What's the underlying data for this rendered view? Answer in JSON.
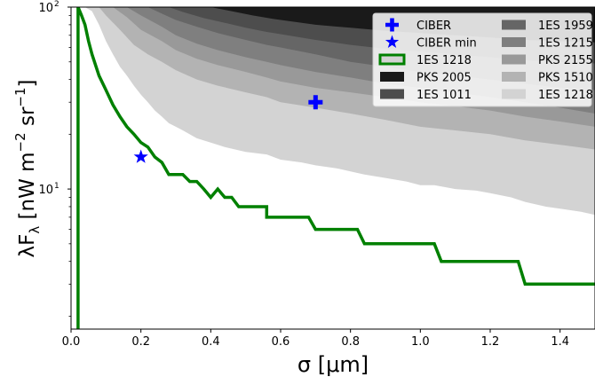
{
  "chart_data": {
    "type": "area",
    "title": "",
    "xlabel": "σ  [μm]",
    "ylabel_main": "λF",
    "ylabel_sub": "λ",
    "ylabel_units": "  [nW m",
    "ylabel_exp1": "−2",
    "ylabel_mid": " sr",
    "ylabel_exp2": "−1",
    "ylabel_end": "]",
    "xlim": [
      0.0,
      1.5
    ],
    "ylim_log10": [
      0.23,
      2.0
    ],
    "yscale": "log",
    "grid": false,
    "legend_position": "top-right",
    "xticks": [
      {
        "value": 0.0,
        "label": "0.0"
      },
      {
        "value": 0.2,
        "label": "0.2"
      },
      {
        "value": 0.4,
        "label": "0.4"
      },
      {
        "value": 0.6,
        "label": "0.6"
      },
      {
        "value": 0.8,
        "label": "0.8"
      },
      {
        "value": 1.0,
        "label": "1.0"
      },
      {
        "value": 1.2,
        "label": "1.2"
      },
      {
        "value": 1.4,
        "label": "1.4"
      }
    ],
    "yticks": [
      {
        "value": 10,
        "label": "10",
        "exp": "1"
      },
      {
        "value": 100,
        "label": "10",
        "exp": "2"
      }
    ],
    "points": [
      {
        "name": "CIBER",
        "x": 0.7,
        "y": 30,
        "marker": "plus",
        "color": "#0000ff"
      },
      {
        "name": "CIBER min",
        "x": 0.2,
        "y": 15,
        "marker": "star",
        "color": "#0000ff"
      }
    ],
    "bands": [
      {
        "name": "1ES 1218",
        "color": "#d3d3d3",
        "x": [
          0.02,
          0.04,
          0.06,
          0.08,
          0.1,
          0.12,
          0.14,
          0.16,
          0.18,
          0.2,
          0.22,
          0.24,
          0.26,
          0.28,
          0.3,
          0.32,
          0.36,
          0.4,
          0.44,
          0.5,
          0.56,
          0.6,
          0.66,
          0.7,
          0.76,
          0.8,
          0.84,
          0.9,
          0.96,
          1.0,
          1.04,
          1.1,
          1.16,
          1.2,
          1.26,
          1.3,
          1.36,
          1.4,
          1.46,
          1.5
        ],
        "y": [
          100,
          100,
          95,
          80,
          65,
          55,
          47,
          42,
          37,
          33,
          30,
          27,
          25,
          23,
          22,
          21,
          19,
          18,
          17,
          16,
          15.5,
          14.5,
          14,
          13.5,
          13,
          12.5,
          12,
          11.5,
          11,
          10.5,
          10.5,
          10,
          9.8,
          9.5,
          9,
          8.5,
          8,
          7.8,
          7.5,
          7.2
        ]
      },
      {
        "name": "PKS 1510",
        "color": "#b3b3b3",
        "x": [
          0.02,
          0.08,
          0.1,
          0.14,
          0.18,
          0.22,
          0.26,
          0.3,
          0.36,
          0.42,
          0.5,
          0.56,
          0.6,
          0.7,
          0.8,
          0.9,
          1.0,
          1.1,
          1.2,
          1.3,
          1.4,
          1.5
        ],
        "y": [
          100,
          100,
          90,
          75,
          62,
          55,
          50,
          45,
          40,
          37,
          34,
          32,
          30,
          28,
          26,
          24,
          22,
          21,
          20,
          18.5,
          17.5,
          16.5
        ]
      },
      {
        "name": "PKS 2155",
        "color": "#999999",
        "x": [
          0.02,
          0.12,
          0.16,
          0.2,
          0.26,
          0.3,
          0.36,
          0.42,
          0.5,
          0.56,
          0.6,
          0.7,
          0.8,
          0.9,
          1.0,
          1.1,
          1.2,
          1.3,
          1.4,
          1.5
        ],
        "y": [
          100,
          100,
          88,
          75,
          65,
          58,
          52,
          48,
          44,
          41,
          39,
          36,
          34,
          32,
          30,
          28.5,
          27,
          25,
          23.5,
          22
        ]
      },
      {
        "name": "1ES 1215",
        "color": "#7f7f7f",
        "x": [
          0.02,
          0.16,
          0.2,
          0.26,
          0.3,
          0.36,
          0.42,
          0.5,
          0.56,
          0.6,
          0.7,
          0.8,
          0.9,
          1.0,
          1.1,
          1.2,
          1.3,
          1.4,
          1.5
        ],
        "y": [
          100,
          100,
          90,
          78,
          70,
          63,
          58,
          53,
          50,
          48,
          44,
          41,
          38,
          36,
          34,
          32,
          30,
          28,
          26
        ]
      },
      {
        "name": "1ES 1959",
        "color": "#666666",
        "x": [
          0.02,
          0.22,
          0.26,
          0.3,
          0.36,
          0.42,
          0.5,
          0.56,
          0.6,
          0.7,
          0.8,
          0.9,
          1.0,
          1.1,
          1.2,
          1.3,
          1.4,
          1.5
        ],
        "y": [
          100,
          100,
          92,
          85,
          78,
          72,
          66,
          62,
          60,
          55,
          50,
          47,
          44,
          42,
          40,
          38,
          36,
          35
        ]
      },
      {
        "name": "1ES 1011",
        "color": "#4d4d4d",
        "x": [
          0.02,
          0.28,
          0.32,
          0.38,
          0.44,
          0.5,
          0.56,
          0.6,
          0.7,
          0.8,
          0.9,
          1.0,
          1.1,
          1.2,
          1.3,
          1.4,
          1.5
        ],
        "y": [
          100,
          100,
          94,
          87,
          82,
          77,
          73,
          71,
          66,
          62,
          59,
          57,
          55,
          53,
          51,
          50,
          49
        ]
      },
      {
        "name": "PKS 2005",
        "color": "#1a1a1a",
        "x": [
          0.02,
          0.4,
          0.46,
          0.52,
          0.58,
          0.64,
          0.7,
          0.8,
          0.9,
          1.0,
          1.1,
          1.2,
          1.3,
          1.4,
          1.5
        ],
        "y": [
          100,
          100,
          95,
          90,
          86,
          83,
          80,
          77,
          74,
          72,
          70,
          68,
          66,
          65,
          64
        ]
      }
    ],
    "line": {
      "name": "1ES 1218",
      "color": "#008000",
      "x": [
        0.02,
        0.02,
        0.03,
        0.04,
        0.05,
        0.06,
        0.08,
        0.1,
        0.12,
        0.14,
        0.16,
        0.18,
        0.2,
        0.22,
        0.24,
        0.26,
        0.28,
        0.3,
        0.32,
        0.34,
        0.36,
        0.38,
        0.4,
        0.42,
        0.44,
        0.46,
        0.48,
        0.56,
        0.56,
        0.68,
        0.7,
        0.82,
        0.84,
        1.04,
        1.06,
        1.28,
        1.3,
        1.5
      ],
      "y": [
        1.7,
        100,
        90,
        80,
        65,
        55,
        42,
        35,
        29,
        25,
        22,
        20,
        18,
        17,
        15,
        14,
        12,
        12,
        12,
        11,
        11,
        10,
        9,
        10,
        9,
        9,
        8,
        8,
        7,
        7,
        6,
        6,
        5,
        5,
        4,
        4,
        3,
        3
      ]
    },
    "legend": [
      {
        "label": "CIBER",
        "kind": "plus",
        "color": "#0000ff"
      },
      {
        "label": "CIBER min",
        "kind": "star",
        "color": "#0000ff"
      },
      {
        "label": "1ES 1218",
        "kind": "outline",
        "color": "#008000"
      },
      {
        "label": "PKS 2005",
        "kind": "patch",
        "color": "#1a1a1a"
      },
      {
        "label": "1ES 1011",
        "kind": "patch",
        "color": "#4d4d4d"
      },
      {
        "label": "1ES 1959",
        "kind": "patch",
        "color": "#666666"
      },
      {
        "label": "1ES 1215",
        "kind": "patch",
        "color": "#7f7f7f"
      },
      {
        "label": "PKS 2155",
        "kind": "patch",
        "color": "#999999"
      },
      {
        "label": "PKS 1510",
        "kind": "patch",
        "color": "#b3b3b3"
      },
      {
        "label": "1ES 1218",
        "kind": "patch",
        "color": "#d3d3d3"
      }
    ]
  }
}
